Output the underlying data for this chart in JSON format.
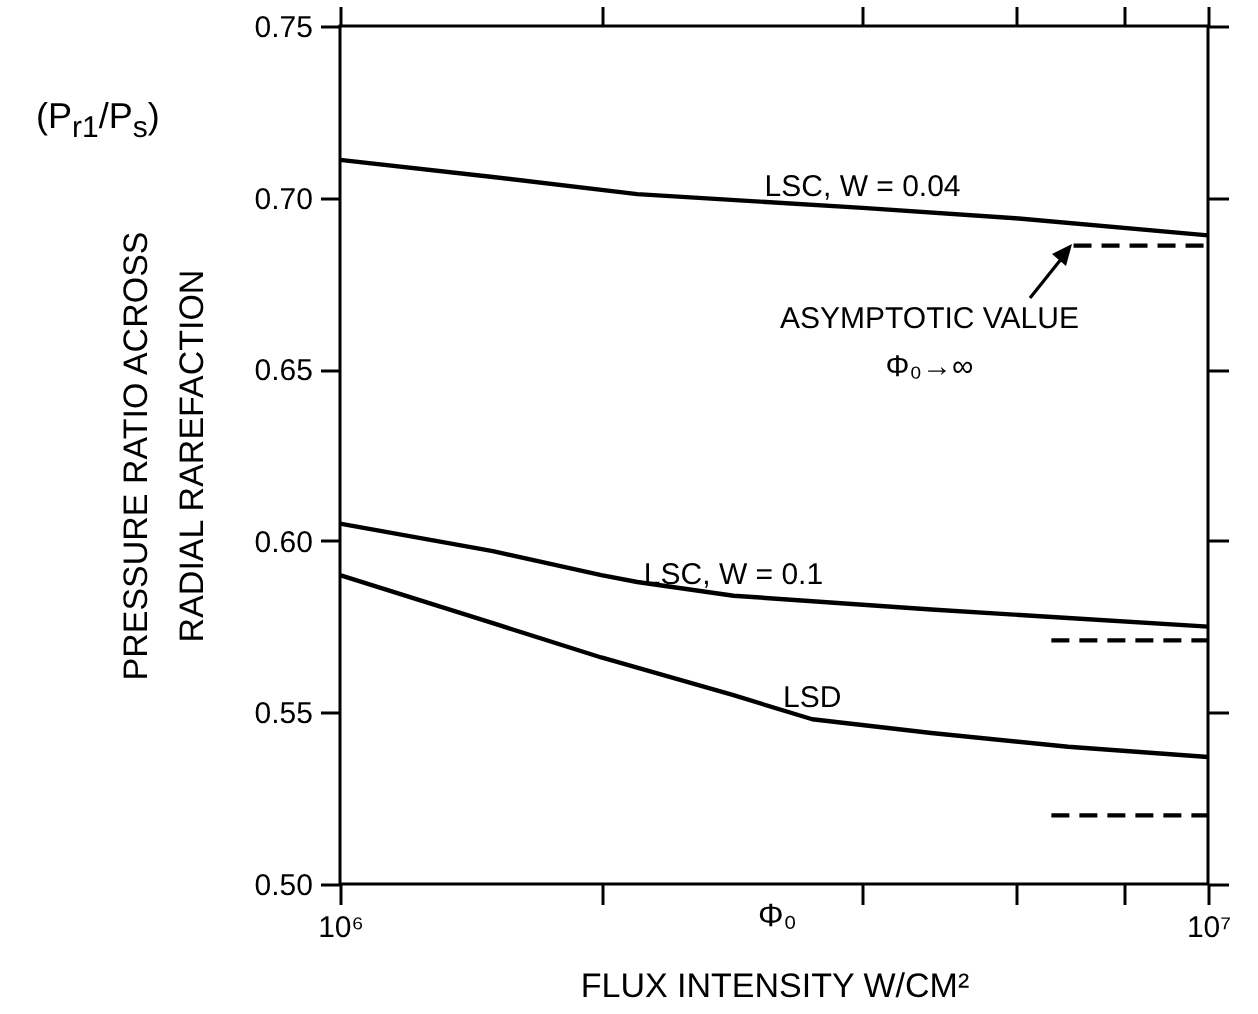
{
  "chart_data": {
    "type": "line",
    "xlabel": "FLUX INTENSITY W/CM²",
    "ylabel": "PRESSURE RATIO ACROSS\nRADIAL RAREFACTION",
    "log": "x",
    "xlim": [
      1000000,
      10000000
    ],
    "xticks": [
      {
        "value": 1000000,
        "label": "10⁶"
      },
      {
        "value": 2000000,
        "label": null
      },
      {
        "value": 4000000,
        "label": null
      },
      {
        "value": 6000000,
        "label": null
      },
      {
        "value": 8000000,
        "label": null
      },
      {
        "value": 10000000,
        "label": "10⁷"
      }
    ],
    "ylim": [
      0.5,
      0.75
    ],
    "yticks": [
      {
        "value": 0.5,
        "label": "0.50"
      },
      0.55,
      {
        "value": 0.6,
        "label": "0.60"
      },
      0.65,
      {
        "value": 0.7,
        "label": "0.70"
      },
      0.75
    ],
    "series": [
      {
        "name": "LSC, W = 0.04",
        "color": "#000000",
        "x": [
          1000000,
          1500000,
          2200000,
          4000000,
          6000000,
          10000000
        ],
        "values": [
          0.711,
          0.706,
          0.701,
          0.697,
          0.694,
          0.689
        ]
      },
      {
        "color": "#000000",
        "line_style": "dashed",
        "x": [
          7000000,
          10000000
        ],
        "values": [
          0.686,
          0.686
        ]
      },
      {
        "name": "LSC, W = 0.1",
        "color": "#000000",
        "x": [
          1000000,
          1500000,
          2000000,
          2200000,
          2840000,
          4800000,
          6900000,
          10000000
        ],
        "values": [
          0.605,
          0.597,
          0.59,
          0.588,
          0.584,
          0.58,
          0.5775,
          0.575
        ]
      },
      {
        "color": "#000000",
        "line_style": "dashed",
        "x": [
          6600000,
          10000000
        ],
        "values": [
          0.571,
          0.571
        ]
      },
      {
        "name": "LSD",
        "color": "#000000",
        "x": [
          1000000,
          1500000,
          2000000,
          2840000,
          3500000,
          4800000,
          6900000,
          10000000
        ],
        "values": [
          0.59,
          0.576,
          0.566,
          0.555,
          0.548,
          0.544,
          0.54,
          0.537
        ]
      },
      {
        "color": "#000000",
        "line_style": "dashed",
        "x": [
          6600000,
          10000000
        ],
        "values": [
          0.52,
          0.52
        ]
      }
    ],
    "annotations": [
      "(P$_{r1}$/P$_{s}$)",
      "Φ₀",
      "ASYMPTOTIC VALUE\nΦ₀→∞"
    ]
  }
}
